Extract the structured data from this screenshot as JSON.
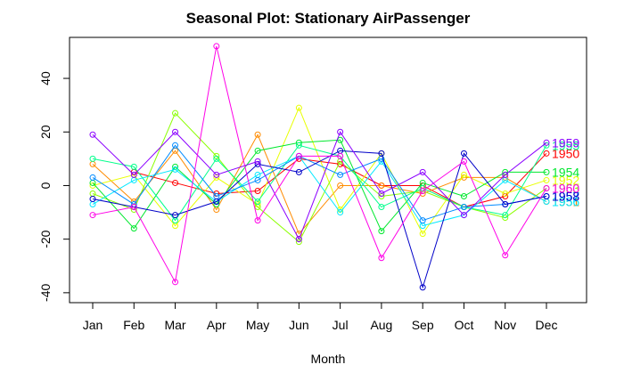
{
  "chart_data": {
    "type": "line",
    "title": "Seasonal Plot: Stationary AirPassenger",
    "x_label": "Month",
    "categories": [
      "Jan",
      "Feb",
      "Mar",
      "Apr",
      "May",
      "Jun",
      "Jul",
      "Aug",
      "Sep",
      "Oct",
      "Nov",
      "Dec"
    ],
    "ylim": [
      -43.7,
      55.3
    ],
    "yticks": [
      -40,
      -20,
      0,
      20,
      40
    ],
    "series": [
      {
        "name": "1950",
        "color": "#FF0000",
        "values": [
          null,
          5,
          1,
          -3,
          -2,
          10,
          8,
          0,
          0,
          -8,
          -4,
          12
        ]
      },
      {
        "name": "1951",
        "color": "#FF8B00",
        "values": [
          8,
          -6,
          13,
          -9,
          19,
          -18,
          0,
          0,
          -3,
          3,
          3,
          -6
        ]
      },
      {
        "name": "1952",
        "color": "#E8FF00",
        "values": [
          0,
          4,
          -15,
          3,
          -7,
          29,
          -9,
          12,
          -18,
          4,
          -3,
          2
        ]
      },
      {
        "name": "1953",
        "color": "#8BFF00",
        "values": [
          -3,
          -9,
          27,
          11,
          -8,
          -21,
          9,
          -4,
          -2,
          -8,
          -12,
          -1
        ]
      },
      {
        "name": "1954",
        "color": "#00E82E",
        "values": [
          1,
          -16,
          7,
          -7,
          13,
          16,
          17,
          -17,
          1,
          -4,
          5,
          5
        ]
      },
      {
        "name": "1955",
        "color": "#00FF8B",
        "values": [
          10,
          7,
          -13,
          10,
          -6,
          15,
          11,
          -8,
          -1,
          -8,
          -11,
          15
        ]
      },
      {
        "name": "1956",
        "color": "#00E8FF",
        "values": [
          -7,
          2,
          6,
          -6,
          4,
          11,
          -10,
          9,
          -15,
          -11,
          2,
          -6
        ]
      },
      {
        "name": "1957",
        "color": "#008BFF",
        "values": [
          3,
          -7,
          15,
          -4,
          2,
          11,
          4,
          10,
          -13,
          -8,
          -7,
          -4
        ]
      },
      {
        "name": "1958",
        "color": "#0000C8",
        "values": [
          -5,
          -8,
          -11,
          -6,
          8,
          5,
          13,
          12,
          -38,
          12,
          -7,
          -4
        ]
      },
      {
        "name": "1959",
        "color": "#8B00FF",
        "values": [
          19,
          4,
          20,
          4,
          9,
          -20,
          20,
          -3,
          5,
          -11,
          4,
          16
        ]
      },
      {
        "name": "1960",
        "color": "#FF00E8",
        "values": [
          -11,
          -8,
          -36,
          52,
          -13,
          11,
          11,
          -27,
          -2,
          9,
          -26,
          -1
        ]
      }
    ]
  }
}
